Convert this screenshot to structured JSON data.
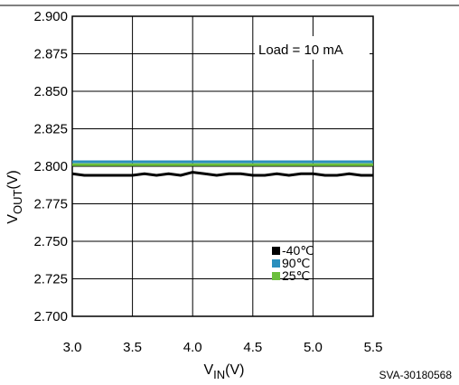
{
  "chart_data": {
    "type": "line",
    "xlabel_main": "V",
    "xlabel_sub": "IN",
    "xlabel_unit": "(V)",
    "ylabel_main": "V",
    "ylabel_sub": "OUT",
    "ylabel_unit": "(V)",
    "xlim": [
      3.0,
      5.5
    ],
    "ylim": [
      2.7,
      2.9
    ],
    "x_ticks": [
      "3.0",
      "3.5",
      "4.0",
      "4.5",
      "5.0",
      "5.5"
    ],
    "y_ticks": [
      "2.900",
      "2.875",
      "2.850",
      "2.825",
      "2.800",
      "2.775",
      "2.750",
      "2.725",
      "2.700"
    ],
    "grid": true,
    "annotation": "Load = 10 mA",
    "code": "SVA-30180568",
    "legend_position": "bottom-center",
    "x": [
      3.0,
      3.1,
      3.2,
      3.3,
      3.4,
      3.5,
      3.6,
      3.7,
      3.8,
      3.9,
      4.0,
      4.1,
      4.2,
      4.3,
      4.4,
      4.5,
      4.6,
      4.7,
      4.8,
      4.9,
      5.0,
      5.1,
      5.2,
      5.3,
      5.4,
      5.5
    ],
    "series": [
      {
        "name": "-40℃",
        "color": "#000000",
        "values": [
          2.795,
          2.794,
          2.794,
          2.794,
          2.794,
          2.794,
          2.795,
          2.794,
          2.795,
          2.794,
          2.796,
          2.795,
          2.794,
          2.795,
          2.795,
          2.794,
          2.794,
          2.795,
          2.794,
          2.795,
          2.795,
          2.794,
          2.794,
          2.795,
          2.794,
          2.794
        ]
      },
      {
        "name": "90℃",
        "color": "#2a8fbd",
        "values": [
          2.803,
          2.803,
          2.803,
          2.803,
          2.803,
          2.803,
          2.803,
          2.803,
          2.803,
          2.803,
          2.803,
          2.803,
          2.803,
          2.803,
          2.803,
          2.803,
          2.803,
          2.803,
          2.803,
          2.803,
          2.803,
          2.803,
          2.803,
          2.803,
          2.803,
          2.803
        ]
      },
      {
        "name": "25℃",
        "color": "#6cbf3c",
        "values": [
          2.801,
          2.801,
          2.801,
          2.801,
          2.801,
          2.801,
          2.801,
          2.801,
          2.801,
          2.801,
          2.801,
          2.801,
          2.801,
          2.801,
          2.801,
          2.801,
          2.801,
          2.801,
          2.801,
          2.801,
          2.801,
          2.801,
          2.801,
          2.801,
          2.801,
          2.801
        ]
      }
    ]
  }
}
